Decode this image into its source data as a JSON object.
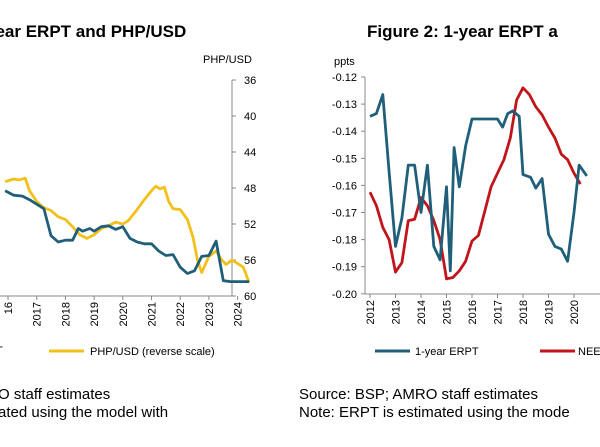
{
  "figure1": {
    "title": "year ERPT and PHP/USD"
  },
  "figure2": {
    "title": "Figure 2: 1-year ERPT a"
  },
  "notes": {
    "left_line1": "O staff estimates",
    "left_line2": "ated using the model with",
    "right_line1": "Source: BSP; AMRO staff estimates",
    "right_line2": "Note: ERPT is estimated using the mode"
  },
  "colors": {
    "erpt": "#1f5f7a",
    "phpusd": "#f2c01a",
    "neer": "#c0151b",
    "axis": "#888888"
  },
  "chart_data": [
    {
      "type": "line",
      "title": "year ERPT and PHP/USD",
      "secondary_axis": {
        "label": "PHP/USD",
        "ticks": [
          "36",
          "40",
          "44",
          "48",
          "52",
          "56",
          "60"
        ],
        "range": [
          36,
          60
        ],
        "reversed": true
      },
      "x_ticks": [
        "16",
        "2017",
        "2018",
        "2019",
        "2020",
        "2021",
        "2022",
        "2023",
        "2024"
      ],
      "legend": [
        "T",
        "PHP/USD (reverse scale)"
      ],
      "series": [
        {
          "name": "PHP/USD (reverse scale)",
          "axis": "secondary",
          "color": "#f2c01a",
          "points": [
            [
              2015.9,
              47.3
            ],
            [
              2016.2,
              47.0
            ],
            [
              2016.4,
              47.1
            ],
            [
              2016.6,
              46.9
            ],
            [
              2016.75,
              48.3
            ],
            [
              2017.0,
              49.5
            ],
            [
              2017.25,
              50.2
            ],
            [
              2017.5,
              50.5
            ],
            [
              2017.75,
              51.2
            ],
            [
              2018.0,
              51.5
            ],
            [
              2018.25,
              52.3
            ],
            [
              2018.5,
              53.2
            ],
            [
              2018.75,
              53.6
            ],
            [
              2019.0,
              53.2
            ],
            [
              2019.25,
              52.5
            ],
            [
              2019.5,
              52.2
            ],
            [
              2019.75,
              51.8
            ],
            [
              2020.0,
              52.0
            ],
            [
              2020.2,
              51.6
            ],
            [
              2020.45,
              50.6
            ],
            [
              2020.75,
              49.3
            ],
            [
              2021.0,
              48.3
            ],
            [
              2021.15,
              47.8
            ],
            [
              2021.3,
              48.1
            ],
            [
              2021.45,
              47.9
            ],
            [
              2021.6,
              49.5
            ],
            [
              2021.75,
              50.3
            ],
            [
              2022.0,
              50.4
            ],
            [
              2022.25,
              51.5
            ],
            [
              2022.45,
              53.5
            ],
            [
              2022.6,
              56.0
            ],
            [
              2022.75,
              57.4
            ],
            [
              2023.0,
              55.6
            ],
            [
              2023.25,
              55.0
            ],
            [
              2023.45,
              56.0
            ],
            [
              2023.6,
              56.5
            ],
            [
              2023.8,
              56.0
            ],
            [
              2024.0,
              56.4
            ],
            [
              2024.2,
              56.8
            ],
            [
              2024.4,
              58.5
            ]
          ]
        },
        {
          "name": "T",
          "axis": "primary",
          "color": "#1f5f7a",
          "points": [
            [
              2015.9,
              48.3
            ],
            [
              2016.2,
              48.8
            ],
            [
              2016.5,
              48.9
            ],
            [
              2016.75,
              49.3
            ],
            [
              2017.0,
              49.8
            ],
            [
              2017.25,
              50.3
            ],
            [
              2017.5,
              53.3
            ],
            [
              2017.75,
              54.0
            ],
            [
              2018.0,
              53.8
            ],
            [
              2018.25,
              53.8
            ],
            [
              2018.45,
              52.5
            ],
            [
              2018.6,
              52.8
            ],
            [
              2018.85,
              52.5
            ],
            [
              2019.0,
              52.8
            ],
            [
              2019.25,
              52.3
            ],
            [
              2019.5,
              52.2
            ],
            [
              2019.75,
              52.6
            ],
            [
              2020.0,
              52.3
            ],
            [
              2020.25,
              53.6
            ],
            [
              2020.5,
              54.0
            ],
            [
              2020.75,
              54.2
            ],
            [
              2021.0,
              54.2
            ],
            [
              2021.25,
              55.0
            ],
            [
              2021.5,
              55.5
            ],
            [
              2021.75,
              55.4
            ],
            [
              2022.0,
              56.8
            ],
            [
              2022.25,
              57.5
            ],
            [
              2022.5,
              57.2
            ],
            [
              2022.75,
              55.6
            ],
            [
              2023.0,
              55.5
            ],
            [
              2023.25,
              53.9
            ],
            [
              2023.5,
              58.3
            ],
            [
              2023.75,
              58.4
            ],
            [
              2024.0,
              58.4
            ],
            [
              2024.4,
              58.4
            ]
          ]
        }
      ]
    },
    {
      "type": "line",
      "title": "Figure 2: 1-year ERPT a",
      "y_axis": {
        "label": "ppts",
        "ticks": [
          "-0.12",
          "-0.13",
          "-0.14",
          "-0.15",
          "-0.16",
          "-0.17",
          "-0.18",
          "-0.19",
          "-0.20"
        ],
        "range": [
          -0.2,
          -0.12
        ]
      },
      "x_ticks": [
        "2012",
        "2013",
        "2014",
        "2015",
        "2016",
        "2017",
        "2018",
        "2019",
        "2020"
      ],
      "legend": [
        "1-year ERPT",
        "NEE"
      ],
      "series": [
        {
          "name": "1-year ERPT",
          "color": "#1f5f7a",
          "points": [
            [
              2012.0,
              -0.1345
            ],
            [
              2012.25,
              -0.1335
            ],
            [
              2012.5,
              -0.1265
            ],
            [
              2012.75,
              -0.155
            ],
            [
              2013.0,
              -0.1825
            ],
            [
              2013.25,
              -0.172
            ],
            [
              2013.5,
              -0.1525
            ],
            [
              2013.75,
              -0.1525
            ],
            [
              2014.0,
              -0.17
            ],
            [
              2014.25,
              -0.1525
            ],
            [
              2014.5,
              -0.1825
            ],
            [
              2014.75,
              -0.1875
            ],
            [
              2015.0,
              -0.1605
            ],
            [
              2015.15,
              -0.1915
            ],
            [
              2015.3,
              -0.146
            ],
            [
              2015.5,
              -0.1605
            ],
            [
              2015.75,
              -0.1455
            ],
            [
              2016.0,
              -0.1355
            ],
            [
              2016.5,
              -0.1355
            ],
            [
              2017.0,
              -0.1355
            ],
            [
              2017.2,
              -0.1385
            ],
            [
              2017.4,
              -0.1335
            ],
            [
              2017.6,
              -0.1325
            ],
            [
              2017.85,
              -0.1345
            ],
            [
              2018.0,
              -0.156
            ],
            [
              2018.3,
              -0.157
            ],
            [
              2018.5,
              -0.161
            ],
            [
              2018.75,
              -0.1575
            ],
            [
              2019.0,
              -0.178
            ],
            [
              2019.25,
              -0.1825
            ],
            [
              2019.5,
              -0.1835
            ],
            [
              2019.75,
              -0.188
            ],
            [
              2020.0,
              -0.17
            ],
            [
              2020.2,
              -0.1525
            ],
            [
              2020.5,
              -0.1565
            ]
          ]
        },
        {
          "name": "NEE",
          "color": "#c0151b",
          "points": [
            [
              2012.0,
              -0.1625
            ],
            [
              2012.25,
              -0.1675
            ],
            [
              2012.5,
              -0.1755
            ],
            [
              2012.75,
              -0.18
            ],
            [
              2013.0,
              -0.192
            ],
            [
              2013.25,
              -0.1885
            ],
            [
              2013.5,
              -0.173
            ],
            [
              2013.75,
              -0.1725
            ],
            [
              2014.0,
              -0.1645
            ],
            [
              2014.25,
              -0.1675
            ],
            [
              2014.5,
              -0.173
            ],
            [
              2014.75,
              -0.18
            ],
            [
              2015.0,
              -0.1945
            ],
            [
              2015.25,
              -0.194
            ],
            [
              2015.5,
              -0.1915
            ],
            [
              2015.75,
              -0.188
            ],
            [
              2016.0,
              -0.1805
            ],
            [
              2016.25,
              -0.1785
            ],
            [
              2016.5,
              -0.1695
            ],
            [
              2016.75,
              -0.1605
            ],
            [
              2017.0,
              -0.1555
            ],
            [
              2017.25,
              -0.1505
            ],
            [
              2017.5,
              -0.1425
            ],
            [
              2017.75,
              -0.1285
            ],
            [
              2018.0,
              -0.124
            ],
            [
              2018.25,
              -0.1265
            ],
            [
              2018.5,
              -0.131
            ],
            [
              2018.75,
              -0.134
            ],
            [
              2019.0,
              -0.1385
            ],
            [
              2019.25,
              -0.1425
            ],
            [
              2019.5,
              -0.1485
            ],
            [
              2019.75,
              -0.1505
            ],
            [
              2020.0,
              -0.1555
            ],
            [
              2020.25,
              -0.1595
            ]
          ]
        }
      ]
    }
  ]
}
